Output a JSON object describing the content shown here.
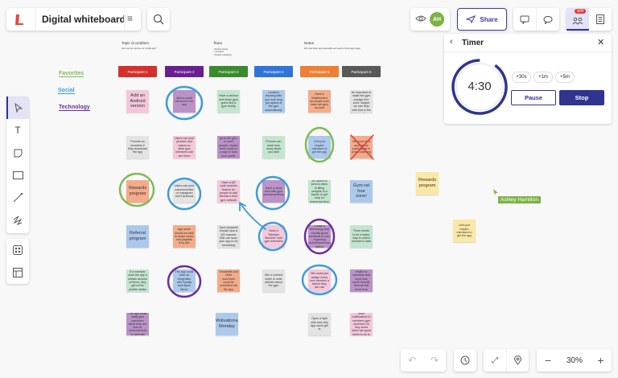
{
  "header": {
    "title": "Digital whiteboard",
    "avatar_initials": "AH",
    "share_label": "Share",
    "timer_badge": "5m"
  },
  "timer": {
    "title": "Timer",
    "time": "4:30",
    "add_30s": "+30s",
    "add_1m": "+1m",
    "add_5m": "+5m",
    "pause_label": "Pause",
    "stop_label": "Stop",
    "progress": 0.9
  },
  "board": {
    "topic_heading": "Topic or problem",
    "topic_text": "How can we improve our mobile app?",
    "team_heading": "Team",
    "team_lines": [
      "- Product teams",
      "- UX teams",
      "- Product marketing"
    ],
    "notes_heading": "Notes",
    "notes_text": "We have lower app downloads and need to boost app usage.",
    "participants": [
      {
        "label": "Participant 1",
        "color": "#d4302b"
      },
      {
        "label": "Participant 2",
        "color": "#6a1f91"
      },
      {
        "label": "Participant 3",
        "color": "#3a8a2e"
      },
      {
        "label": "Participant 4",
        "color": "#2f74d8"
      },
      {
        "label": "Participant 5",
        "color": "#ee7f35"
      },
      {
        "label": "Participant 6",
        "color": "#595959"
      }
    ],
    "tags": [
      {
        "label": "Favorites",
        "color": "#7dbb4f"
      },
      {
        "label": "Social",
        "color": "#3d9bdc"
      },
      {
        "label": "Technology",
        "color": "#6a2d9e"
      }
    ],
    "notes": [
      [
        "Add an Android version",
        "Add a social element to the app",
        "Have a section that helps gym goers find a gym buddy",
        "Location tracking tells you how long you spend at the gym automatically",
        "Have a leaderboard for people who have set gym records",
        "I think it would be important to make the gym a judge free zone. Maybe we can help with that in the app?"
      ],
      [
        "Provide an incentive if they download the app",
        "Users can post pictures and videos so other gym members can see them",
        "A lot of people go to the gym to meet people, maybe there could be a way to host your profile public",
        "Phones can track how many steps you take",
        "Let's just require members to get the app",
        "We could find anyone the participants in public planning"
      ],
      [
        "Rewards program",
        "Users can post comments/like on Instagram and Facebook",
        "Have a QR code scanner feature for people to add friends to their gym network",
        "Have a news feed with gym announcements",
        "An option to send a video of lifting weights to a trainer to get help on improving form",
        "Gym-rat free zone!"
      ],
      [
        "Referral program",
        "App users should be able to share music and playlists they like",
        "Each treadmill should have a QR scanner that can scan your app to do something",
        "Have a \"Member Moment\" with gym members",
        "Create a technology that visually gives feedback to user regarding posture/form/using videos",
        "There needs to be a better way to collect member's data"
      ],
      [
        "If a member uses the app a certain amount of times, they get a free protein shake",
        "The app could have an integration with Spotify and Apple Music",
        "Treadmills and other machines could be controlled via the app",
        "Hire a content writer to write articles about the gym",
        "We could just assign every new member a trainer they can use",
        "We give a reward to members that input how much they lift, then we will more how strong they are"
      ],
      [
        "The app could notify gym members when they are due for workouts built in calendar",
        "",
        "Motivational Monday",
        "",
        "Open a fight club and only app users get in",
        "Info could send notifications to members gym members so they know when are good times to go to the gym"
      ]
    ],
    "side_notes": [
      "Rewards program",
      "Let's just require members to get the app"
    ],
    "cursor_user": "Ashley Hamilton"
  },
  "zoom": {
    "level": "30%"
  }
}
